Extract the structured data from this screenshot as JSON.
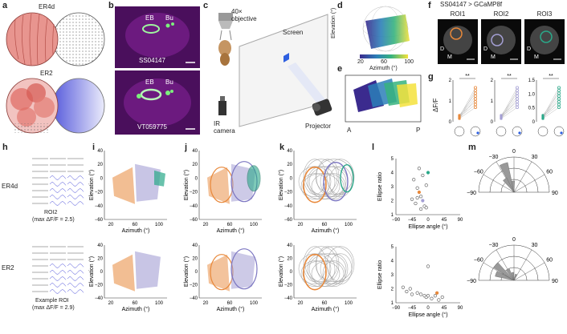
{
  "panels": {
    "a": {
      "label": "a",
      "top_title": "ER4d",
      "bottom_title": "ER2"
    },
    "b": {
      "label": "b",
      "top_line": "SS04147",
      "bottom_line": "VT059775",
      "eb": "EB",
      "bu": "Bu"
    },
    "c": {
      "label": "c",
      "objective": "40×",
      "objective2": "objective",
      "screen": "Screen",
      "ir": "IR",
      "ir2": "camera",
      "projector": "Projector"
    },
    "d": {
      "label": "d",
      "ylabel": "Elevation (°)",
      "xlabel": "Azimuth (°)",
      "cbar_ticks": [
        "20",
        "60",
        "100"
      ]
    },
    "e": {
      "label": "e",
      "left": "A",
      "right": "P"
    },
    "f": {
      "label": "f",
      "title": "SS04147 > GCaMP8f",
      "rois": [
        "ROI1",
        "ROI2",
        "ROI3"
      ],
      "d": "D",
      "m": "M"
    },
    "g": {
      "label": "g",
      "ylabel": "ΔF/F",
      "sig": "**"
    },
    "h": {
      "label": "h",
      "row1": "ER4d",
      "row1_roi": "ROI2",
      "row1_max": "(max ΔF/F = 2.5)",
      "row2": "ER2",
      "row2_roi": "Example ROI",
      "row2_max": "(max ΔF/F = 2.9)"
    },
    "i": {
      "label": "i"
    },
    "j": {
      "label": "j"
    },
    "k": {
      "label": "k"
    },
    "l": {
      "label": "l",
      "ylabel": "Ellipse ratio",
      "xlabel": "Ellipse angle (°)"
    },
    "m": {
      "label": "m"
    }
  },
  "axes": {
    "elevation": "Elevation (°)",
    "azimuth": "Azimuth (°)",
    "x_ticks": [
      "20",
      "60",
      "100"
    ],
    "y_ticks": [
      "40",
      "20",
      "0",
      "−20",
      "−40",
      "−60"
    ],
    "l_x_ticks": [
      "−90",
      "−45",
      "0",
      "45",
      "90"
    ],
    "l_y_ticks_top": [
      "5",
      "4",
      "3",
      "2",
      "1"
    ],
    "l_y_ticks_bottom": [
      "5",
      "4",
      "3",
      "2",
      "1"
    ],
    "polar_ticks": [
      "−30",
      "0",
      "30",
      "−60",
      "60",
      "−90",
      "90"
    ]
  },
  "chart_data": [
    {
      "type": "line",
      "panel": "g",
      "title": "ROI1",
      "x": [
        "off",
        "on"
      ],
      "y_ticks": [
        "0",
        "1",
        "2"
      ]
    },
    {
      "type": "line",
      "panel": "g",
      "title": "ROI2",
      "x": [
        "off",
        "on"
      ],
      "y_ticks": [
        "0",
        "1",
        "2"
      ]
    },
    {
      "type": "line",
      "panel": "g",
      "title": "ROI3",
      "x": [
        "off",
        "on"
      ],
      "y_ticks": [
        "0",
        "0.5",
        "1.0",
        "1.5"
      ]
    },
    {
      "type": "scatter",
      "panel": "l-top",
      "xlabel": "Ellipse angle (°)",
      "ylabel": "Ellipse ratio",
      "xlim": [
        -90,
        90
      ],
      "ylim": [
        1,
        5
      ],
      "points": [
        [
          -40,
          3.5
        ],
        [
          -30,
          2.9
        ],
        [
          -25,
          2.6
        ],
        [
          -20,
          2.3
        ],
        [
          -15,
          2.0
        ],
        [
          -35,
          1.8
        ],
        [
          -10,
          1.6
        ],
        [
          -20,
          1.4
        ],
        [
          -5,
          1.5
        ],
        [
          -30,
          2.2
        ],
        [
          -5,
          3.1
        ],
        [
          -15,
          3.8
        ],
        [
          0,
          4.0
        ],
        [
          -45,
          2.1
        ],
        [
          -25,
          4.3
        ]
      ]
    },
    {
      "type": "scatter",
      "panel": "l-bottom",
      "xlabel": "Ellipse angle (°)",
      "ylabel": "Ellipse ratio",
      "xlim": [
        -90,
        90
      ],
      "ylim": [
        1,
        5
      ],
      "points": [
        [
          -70,
          2.1
        ],
        [
          -60,
          1.8
        ],
        [
          -45,
          1.6
        ],
        [
          -30,
          1.7
        ],
        [
          -20,
          1.6
        ],
        [
          -10,
          1.5
        ],
        [
          -5,
          1.4
        ],
        [
          0,
          1.5
        ],
        [
          10,
          1.3
        ],
        [
          20,
          1.5
        ],
        [
          30,
          1.2
        ],
        [
          40,
          1.4
        ],
        [
          -50,
          2.0
        ],
        [
          0,
          3.6
        ],
        [
          25,
          1.7
        ]
      ]
    }
  ]
}
